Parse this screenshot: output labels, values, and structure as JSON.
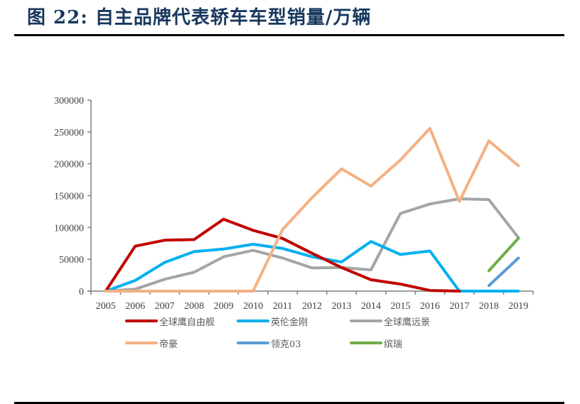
{
  "figure": {
    "title": "图 22:  自主品牌代表轿车车型销量/万辆"
  },
  "chart_data": {
    "type": "line",
    "title": "图 22: 自主品牌代表轿车车型销量/万辆",
    "xlabel": "",
    "ylabel": "",
    "ylim": [
      0,
      300000
    ],
    "yticks": [
      0,
      50000,
      100000,
      150000,
      200000,
      250000,
      300000
    ],
    "grid": false,
    "legend_position": "bottom",
    "categories": [
      "2005",
      "2006",
      "2007",
      "2008",
      "2009",
      "2010",
      "2011",
      "2012",
      "2013",
      "2014",
      "2015",
      "2016",
      "2017",
      "2018",
      "2019"
    ],
    "series": [
      {
        "name": "全球鹰自由舰",
        "color": "#C00000",
        "values": [
          0,
          70600,
          80000,
          81000,
          113000,
          95500,
          82800,
          59400,
          37000,
          17800,
          11000,
          1000,
          0,
          null,
          null
        ]
      },
      {
        "name": "英伦金刚",
        "color": "#00B0F0",
        "values": [
          0,
          16700,
          45000,
          62000,
          66000,
          73600,
          67000,
          54000,
          45700,
          78000,
          57600,
          63000,
          0,
          0,
          0
        ]
      },
      {
        "name": "全球鹰远景",
        "color": "#A5A5A5",
        "values": [
          0,
          3000,
          18600,
          29700,
          54000,
          64000,
          52000,
          36400,
          37000,
          33400,
          122000,
          136800,
          145000,
          143800,
          84000
        ]
      },
      {
        "name": "帝豪",
        "color": "#F4B183",
        "values": [
          0,
          0,
          0,
          0,
          0,
          0,
          96600,
          146800,
          192000,
          165000,
          206000,
          255600,
          141000,
          236000,
          197000
        ]
      },
      {
        "name": "领克03",
        "color": "#5B9BD5",
        "values": [
          null,
          null,
          null,
          null,
          null,
          null,
          null,
          null,
          null,
          null,
          null,
          null,
          null,
          8600,
          52000
        ]
      },
      {
        "name": "缤瑞",
        "color": "#70AD47",
        "values": [
          null,
          null,
          null,
          null,
          null,
          null,
          null,
          null,
          null,
          null,
          null,
          null,
          null,
          32000,
          83000
        ]
      }
    ]
  },
  "legend": {
    "items": [
      {
        "label": "全球鹰自由舰",
        "color": "#C00000"
      },
      {
        "label": "英伦金刚",
        "color": "#00B0F0"
      },
      {
        "label": "全球鹰远景",
        "color": "#A5A5A5"
      },
      {
        "label": "帝豪",
        "color": "#F4B183"
      },
      {
        "label": "领克03",
        "color": "#5B9BD5"
      },
      {
        "label": "缤瑞",
        "color": "#70AD47"
      }
    ]
  }
}
